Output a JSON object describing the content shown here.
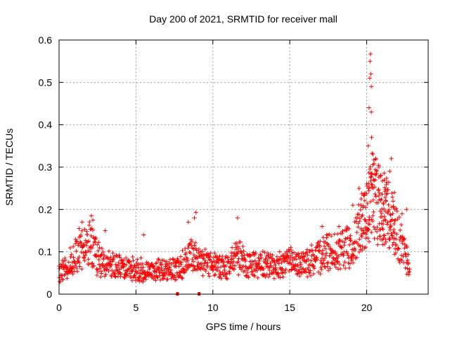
{
  "chart_data": {
    "type": "scatter",
    "title": "Day 200 of 2021, SRMTID for receiver mall",
    "xlabel": "GPS time / hours",
    "ylabel": "SRMTID / TECUs",
    "xlim": [
      0,
      24
    ],
    "ylim": [
      0,
      0.6
    ],
    "xticks": [
      0,
      5,
      10,
      15,
      20
    ],
    "yticks": [
      0,
      0.1,
      0.2,
      0.3,
      0.4,
      0.5,
      0.6
    ],
    "xtick_labels": [
      "0",
      "5",
      "10",
      "15",
      "20"
    ],
    "ytick_labels": [
      "0",
      "0.1",
      "0.2",
      "0.3",
      "0.4",
      "0.5",
      "0.6"
    ],
    "grid": true,
    "marker": "+",
    "marker_color": "#ff0000",
    "series": [
      {
        "name": "SRMTID",
        "trend": {
          "x": [
            0,
            0.5,
            1,
            1.5,
            2,
            2.5,
            3,
            3.5,
            4,
            4.5,
            5,
            5.5,
            6,
            6.5,
            7,
            7.5,
            8,
            8.5,
            9,
            9.5,
            10,
            10.5,
            11,
            11.5,
            12,
            12.5,
            13,
            13.5,
            14,
            14.5,
            15,
            15.5,
            16,
            16.5,
            17,
            17.5,
            18,
            18.5,
            19,
            19.5,
            20,
            20.3,
            20.6,
            21,
            21.3,
            21.6,
            22,
            22.3,
            22.6,
            22.8
          ],
          "y": [
            0.05,
            0.065,
            0.09,
            0.11,
            0.12,
            0.085,
            0.07,
            0.065,
            0.06,
            0.06,
            0.055,
            0.06,
            0.055,
            0.06,
            0.055,
            0.06,
            0.07,
            0.09,
            0.085,
            0.07,
            0.075,
            0.065,
            0.07,
            0.09,
            0.075,
            0.07,
            0.065,
            0.07,
            0.065,
            0.07,
            0.075,
            0.07,
            0.075,
            0.08,
            0.09,
            0.095,
            0.1,
            0.11,
            0.12,
            0.15,
            0.19,
            0.24,
            0.22,
            0.2,
            0.19,
            0.17,
            0.14,
            0.12,
            0.09,
            0.06
          ]
        },
        "peaks": [
          {
            "x": 1.3,
            "y": 0.155
          },
          {
            "x": 1.5,
            "y": 0.17
          },
          {
            "x": 2.1,
            "y": 0.185
          },
          {
            "x": 2.2,
            "y": 0.175
          },
          {
            "x": 3.0,
            "y": 0.15
          },
          {
            "x": 5.5,
            "y": 0.14
          },
          {
            "x": 8.4,
            "y": 0.17
          },
          {
            "x": 8.8,
            "y": 0.18
          },
          {
            "x": 8.9,
            "y": 0.193
          },
          {
            "x": 11.6,
            "y": 0.18
          },
          {
            "x": 17.1,
            "y": 0.16
          },
          {
            "x": 17.4,
            "y": 0.14
          },
          {
            "x": 18.2,
            "y": 0.16
          },
          {
            "x": 19.1,
            "y": 0.21
          },
          {
            "x": 19.5,
            "y": 0.25
          },
          {
            "x": 20.1,
            "y": 0.35
          },
          {
            "x": 20.15,
            "y": 0.44
          },
          {
            "x": 20.2,
            "y": 0.51
          },
          {
            "x": 20.22,
            "y": 0.55
          },
          {
            "x": 20.25,
            "y": 0.567
          },
          {
            "x": 20.28,
            "y": 0.52
          },
          {
            "x": 20.3,
            "y": 0.49
          },
          {
            "x": 20.3,
            "y": 0.43
          },
          {
            "x": 20.32,
            "y": 0.37
          },
          {
            "x": 20.4,
            "y": 0.33
          },
          {
            "x": 20.6,
            "y": 0.32
          },
          {
            "x": 20.8,
            "y": 0.3
          },
          {
            "x": 20.9,
            "y": 0.28
          },
          {
            "x": 21.5,
            "y": 0.29
          },
          {
            "x": 21.6,
            "y": 0.32
          },
          {
            "x": 21.8,
            "y": 0.24
          },
          {
            "x": 22.3,
            "y": 0.19
          },
          {
            "x": 22.6,
            "y": 0.2
          }
        ],
        "lows": [
          {
            "x": 7.7,
            "y": 0.0
          },
          {
            "x": 9.1,
            "y": 0.0
          }
        ]
      }
    ]
  }
}
